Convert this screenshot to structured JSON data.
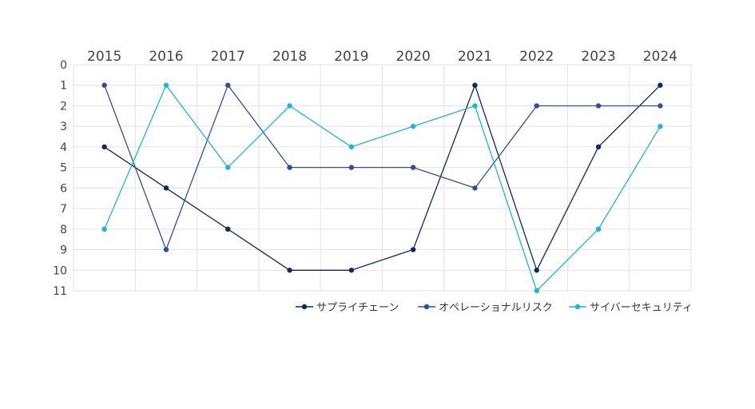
{
  "chart_data": {
    "type": "line",
    "title": "",
    "xlabel": "",
    "ylabel": "",
    "x": [
      "2015",
      "2016",
      "2017",
      "2018",
      "2019",
      "2020",
      "2021",
      "2022",
      "2023",
      "2024"
    ],
    "ylim": [
      0,
      11
    ],
    "y_inverted": true,
    "y_ticks": [
      "0",
      "1",
      "2",
      "3",
      "4",
      "5",
      "6",
      "7",
      "8",
      "9",
      "10",
      "11"
    ],
    "x_axis_position": "top",
    "grid": true,
    "legend_position": "bottom-right",
    "series": [
      {
        "name": "サプライチェーン",
        "color": "#0d2a5c",
        "values": [
          4,
          6,
          8,
          10,
          10,
          9,
          1,
          10,
          4,
          1
        ]
      },
      {
        "name": "オペレーショナルリスク",
        "color": "#2f4f9e",
        "values": [
          1,
          9,
          1,
          5,
          5,
          5,
          6,
          2,
          2,
          2
        ]
      },
      {
        "name": "サイバーセキュリティ",
        "color": "#1fb5d6",
        "values": [
          8,
          1,
          5,
          2,
          4,
          3,
          2,
          11,
          8,
          3
        ]
      }
    ]
  }
}
